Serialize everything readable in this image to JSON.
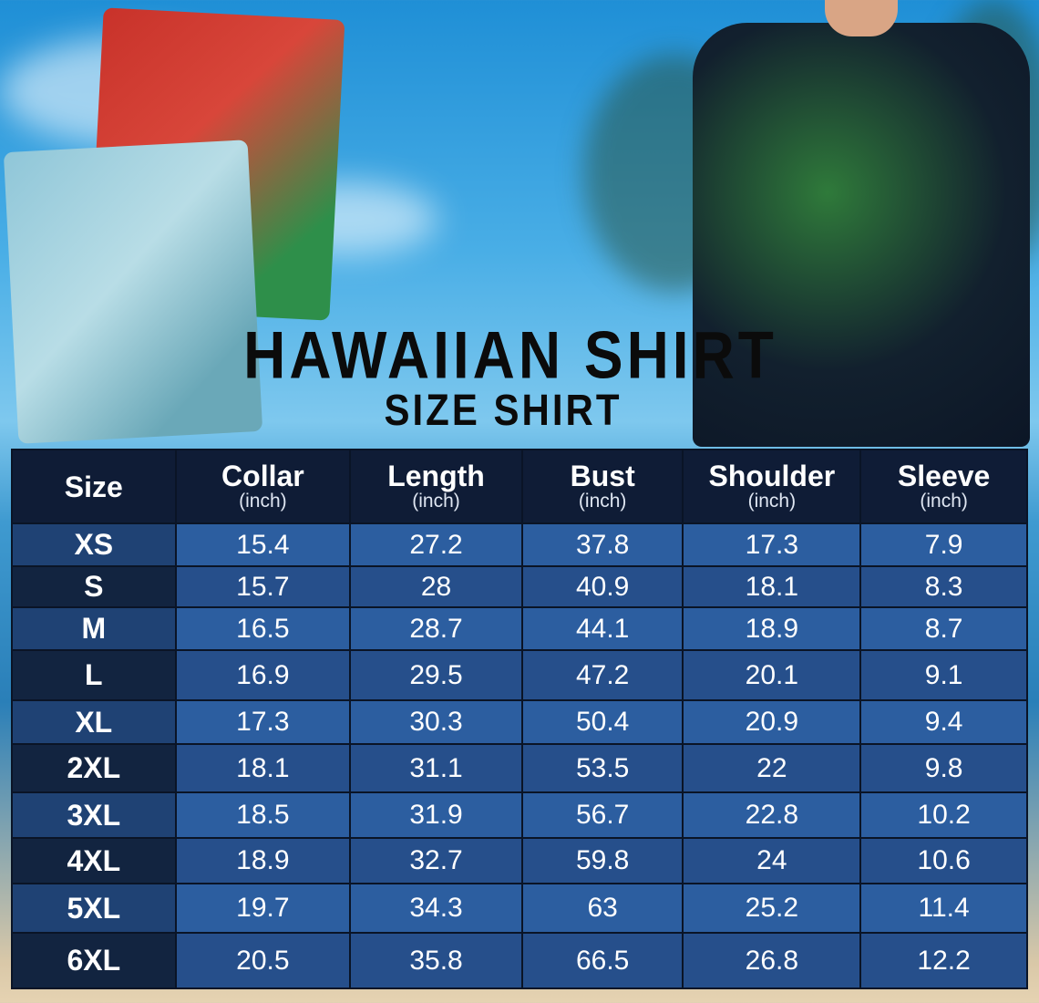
{
  "title": "HAWAIIAN SHIRT",
  "subtitle": "SIZE SHIRT",
  "table": {
    "columns": [
      {
        "label": "Size",
        "unit": ""
      },
      {
        "label": "Collar",
        "unit": "(inch)"
      },
      {
        "label": "Length",
        "unit": "(inch)"
      },
      {
        "label": "Bust",
        "unit": "(inch)"
      },
      {
        "label": "Shoulder",
        "unit": "(inch)"
      },
      {
        "label": "Sleeve",
        "unit": "(inch)"
      }
    ],
    "rows": [
      [
        "XS",
        "15.4",
        "27.2",
        "37.8",
        "17.3",
        "7.9"
      ],
      [
        "S",
        "15.7",
        "28",
        "40.9",
        "18.1",
        "8.3"
      ],
      [
        "M",
        "16.5",
        "28.7",
        "44.1",
        "18.9",
        "8.7"
      ],
      [
        "L",
        "16.9",
        "29.5",
        "47.2",
        "20.1",
        "9.1"
      ],
      [
        "XL",
        "17.3",
        "30.3",
        "50.4",
        "20.9",
        "9.4"
      ],
      [
        "2XL",
        "18.1",
        "31.1",
        "53.5",
        "22",
        "9.8"
      ],
      [
        "3XL",
        "18.5",
        "31.9",
        "56.7",
        "22.8",
        "10.2"
      ],
      [
        "4XL",
        "18.9",
        "32.7",
        "59.8",
        "24",
        "10.6"
      ],
      [
        "5XL",
        "19.7",
        "34.3",
        "63",
        "25.2",
        "11.4"
      ],
      [
        "6XL",
        "20.5",
        "35.8",
        "66.5",
        "26.8",
        "12.2"
      ]
    ]
  },
  "colors": {
    "header": "#0f1c36",
    "row_light": "#2c5ea0",
    "row_dark": "#264f8b"
  }
}
